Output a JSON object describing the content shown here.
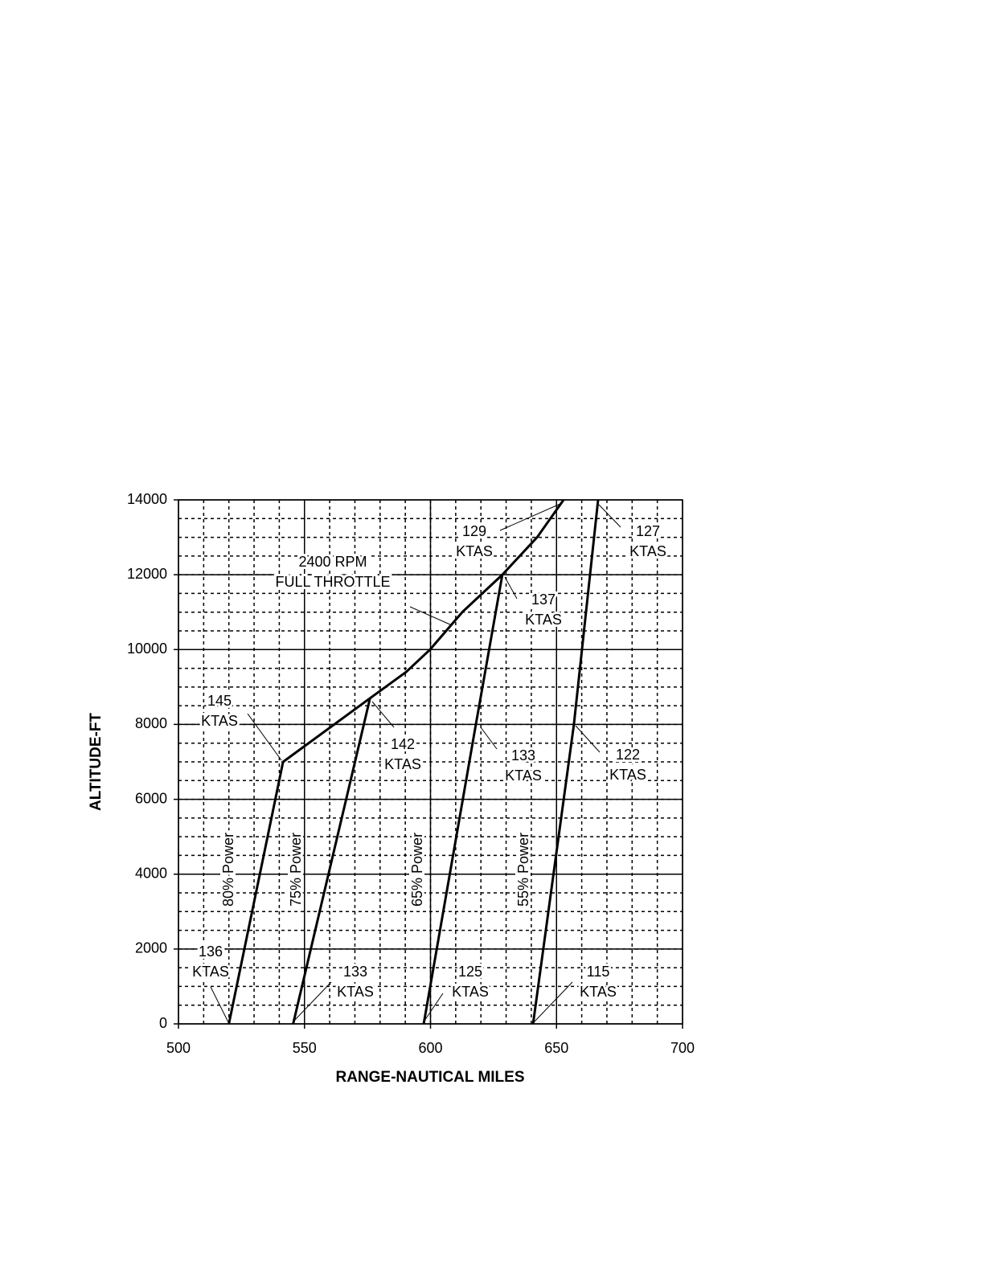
{
  "chart_data": {
    "type": "line",
    "xlabel": "RANGE-NAUTICAL MILES",
    "ylabel": "ALTITUDE-FT",
    "xlim": [
      500,
      700
    ],
    "xticks": [
      500,
      550,
      600,
      650,
      700
    ],
    "ylim": [
      0,
      14000
    ],
    "yticks": [
      0,
      2000,
      4000,
      6000,
      8000,
      10000,
      12000,
      14000
    ],
    "grid": true,
    "minor_grid": {
      "x": 10,
      "y": 500
    },
    "series": [
      {
        "name": "80% Power",
        "color": "#000000",
        "x": [
          520,
          541.5
        ],
        "values": [
          0,
          7000
        ]
      },
      {
        "name": "75% Power",
        "color": "#000000",
        "x": [
          545.5,
          576
        ],
        "values": [
          0,
          8700
        ]
      },
      {
        "name": "65% Power",
        "color": "#000000",
        "x": [
          597.3,
          618,
          628.5
        ],
        "values": [
          0,
          8000,
          12000
        ]
      },
      {
        "name": "55% Power",
        "color": "#000000",
        "x": [
          640.7,
          656.9,
          666.5
        ],
        "values": [
          0,
          8000,
          14000
        ]
      },
      {
        "name": "2400 RPM FULL THROTTLE",
        "color": "#000000",
        "x": [
          541.5,
          576,
          590.3,
          599.8,
          612.6,
          628.5,
          642.3,
          652.8
        ],
        "values": [
          7000,
          8700,
          9400,
          10000,
          11000,
          12000,
          13000,
          14000
        ]
      }
    ],
    "annotations": [
      [
        "129",
        "KTAS"
      ],
      [
        "127",
        "KTAS"
      ],
      [
        "2400 RPM",
        "FULL THROTTLE"
      ],
      [
        "137",
        "KTAS"
      ],
      [
        "145",
        "KTAS"
      ],
      [
        "142",
        "KTAS"
      ],
      [
        "133",
        "KTAS"
      ],
      [
        "122",
        "KTAS"
      ],
      [
        "136",
        "KTAS"
      ],
      [
        "133",
        "KTAS"
      ],
      [
        "125",
        "KTAS"
      ],
      [
        "115",
        "KTAS"
      ]
    ]
  }
}
